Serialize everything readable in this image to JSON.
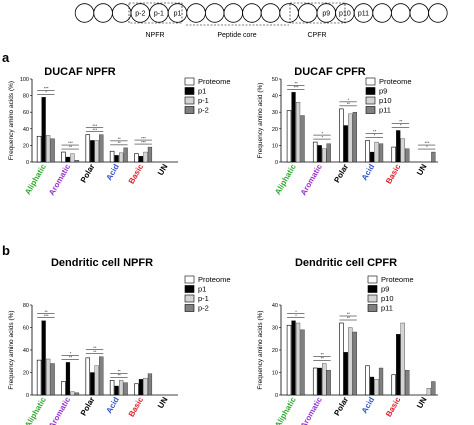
{
  "diagram": {
    "circle_labels": [
      "",
      "",
      "",
      "p-2",
      "p-1",
      "p1",
      "",
      "",
      "",
      "",
      "",
      "",
      "",
      "p9",
      "p10",
      "p11",
      "",
      "",
      "",
      ""
    ],
    "regions": [
      "NPFR",
      "Peptide core",
      "CPFR"
    ]
  },
  "panel_labels": [
    "a",
    "b"
  ],
  "colors": {
    "Proteome": "#ffffff",
    "p1": "#000000",
    "p-1": "#d4d4d4",
    "p-2": "#808080",
    "p9": "#000000",
    "p10": "#d4d4d4",
    "p11": "#808080",
    "aliphatic": "#33aa33",
    "aromatic": "#9933cc",
    "acid": "#3355cc",
    "basic": "#e0202a",
    "neutral": "#000000"
  },
  "chart_data": [
    {
      "type": "bar",
      "title": "DUCAF NPFR",
      "ylabel": "Frequency amino acids (%)",
      "ylim": [
        0,
        100
      ],
      "yticks": [
        0,
        20,
        40,
        60,
        80,
        100
      ],
      "categories": [
        "Aliphatic",
        "Aromatic",
        "Polar",
        "Acid",
        "Basic",
        "UN"
      ],
      "series": [
        {
          "name": "Proteome",
          "values": [
            31,
            12,
            33,
            13,
            10,
            0
          ]
        },
        {
          "name": "p1",
          "values": [
            78,
            6,
            26,
            8,
            7,
            0
          ]
        },
        {
          "name": "p-1",
          "values": [
            32,
            10,
            26,
            11,
            12,
            0
          ]
        },
        {
          "name": "p-2",
          "values": [
            28,
            2,
            33,
            17,
            18,
            0
          ]
        }
      ],
      "sig_labels": [
        "*",
        "***",
        "**",
        "***",
        "***",
        "***",
        "**",
        "**",
        "***",
        "***"
      ]
    },
    {
      "type": "bar",
      "title": "DUCAF CPFR",
      "ylabel": "Frequency amino acid (%)",
      "ylim": [
        0,
        50
      ],
      "yticks": [
        0,
        10,
        20,
        30,
        40,
        50
      ],
      "categories": [
        "Aliphatic",
        "Aromatic",
        "Polar",
        "Acid",
        "Basic",
        "UN"
      ],
      "series": [
        {
          "name": "Proteome",
          "values": [
            31,
            12,
            32,
            13,
            9,
            0
          ]
        },
        {
          "name": "p9",
          "values": [
            42,
            10,
            22,
            6,
            19,
            0
          ]
        },
        {
          "name": "p10",
          "values": [
            36,
            8,
            29,
            12,
            14,
            0
          ]
        },
        {
          "name": "p11",
          "values": [
            28,
            11,
            30,
            11,
            8,
            6
          ]
        }
      ],
      "sig_labels": [
        "***",
        "**",
        "*",
        "*",
        "**",
        "*",
        "*",
        "**",
        "*",
        "**",
        "*",
        "***"
      ]
    },
    {
      "type": "bar",
      "title": "Dendritic cell NPFR",
      "ylabel": "Frequency amino acids (%)",
      "ylim": [
        0,
        80
      ],
      "yticks": [
        0,
        20,
        40,
        60,
        80
      ],
      "categories": [
        "Aliphatic",
        "Aromatic",
        "Polar",
        "Acid",
        "Basic",
        "UN"
      ],
      "series": [
        {
          "name": "Proteome",
          "values": [
            31,
            12,
            33,
            13,
            10,
            0
          ]
        },
        {
          "name": "p1",
          "values": [
            66,
            29,
            20,
            8,
            14,
            0
          ]
        },
        {
          "name": "p-1",
          "values": [
            32,
            3,
            26,
            13,
            15,
            0
          ]
        },
        {
          "name": "p-2",
          "values": [
            28,
            2,
            34,
            11,
            19,
            0
          ]
        }
      ],
      "sig_labels": [
        "***",
        "**",
        "**",
        "*",
        "**",
        "**",
        "**",
        "**"
      ]
    },
    {
      "type": "bar",
      "title": "Dendritic cell CPFR",
      "ylabel": "Frequency amino acids (%)",
      "ylim": [
        0,
        40
      ],
      "yticks": [
        0,
        10,
        20,
        30,
        40
      ],
      "categories": [
        "Aliphatic",
        "Aromatic",
        "Polar",
        "Acid",
        "Basic",
        "UN"
      ],
      "series": [
        {
          "name": "Proteome",
          "values": [
            31,
            12,
            32,
            13,
            9,
            0
          ]
        },
        {
          "name": "p9",
          "values": [
            33,
            12,
            19,
            8,
            27,
            0
          ]
        },
        {
          "name": "p10",
          "values": [
            32,
            14,
            30,
            7,
            32,
            3
          ]
        },
        {
          "name": "p11",
          "values": [
            29,
            11,
            28,
            12,
            11,
            6
          ]
        }
      ],
      "sig_labels": [
        "*",
        "*",
        "**",
        "**",
        "**",
        "**"
      ]
    }
  ]
}
